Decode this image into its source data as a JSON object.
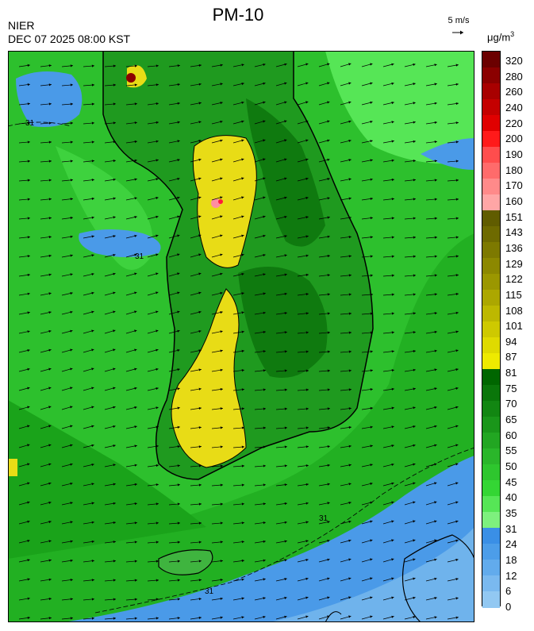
{
  "header": {
    "title": "PM-10",
    "agency": "NIER",
    "timestamp": "DEC 07 2025 08:00 KST",
    "wind_reference": "5 m/s",
    "unit_base": "μg/m",
    "unit_exp": "3"
  },
  "map": {
    "contour_label": "31",
    "colors": {
      "ocean_low": "#4a9ae8",
      "ocean_lower": "#6fb3ec",
      "ocean_green": "#28c628",
      "land_green": "#1f9a1f",
      "mountain_green": "#0f7a0f",
      "yellow": "#e8dc16",
      "peak_red": "#8b0000",
      "pink": "#ff8da1"
    }
  },
  "legend": {
    "labels": [
      "320",
      "280",
      "260",
      "240",
      "220",
      "200",
      "190",
      "180",
      "170",
      "160",
      "151",
      "143",
      "136",
      "129",
      "122",
      "115",
      "108",
      "101",
      "94",
      "87",
      "81",
      "75",
      "70",
      "65",
      "60",
      "55",
      "50",
      "45",
      "40",
      "35",
      "31",
      "24",
      "18",
      "12",
      "6",
      "0"
    ],
    "colors": [
      "#6b0000",
      "#8b0000",
      "#a80000",
      "#c40000",
      "#e00000",
      "#ff1a1a",
      "#ff4d4d",
      "#ff6b6b",
      "#ff8a8a",
      "#ffa6a6",
      "#605c00",
      "#6e6a00",
      "#7d7900",
      "#8c8800",
      "#9b9700",
      "#aca700",
      "#bdb800",
      "#cec900",
      "#dfda00",
      "#eeea00",
      "#006600",
      "#0a760a",
      "#128612",
      "#1a961a",
      "#22a622",
      "#2ab62a",
      "#2ec62e",
      "#34d634",
      "#56e656",
      "#7ef07e",
      "#3a8fe6",
      "#4c9de9",
      "#62abec",
      "#7ab9ef",
      "#92c8f2"
    ]
  }
}
